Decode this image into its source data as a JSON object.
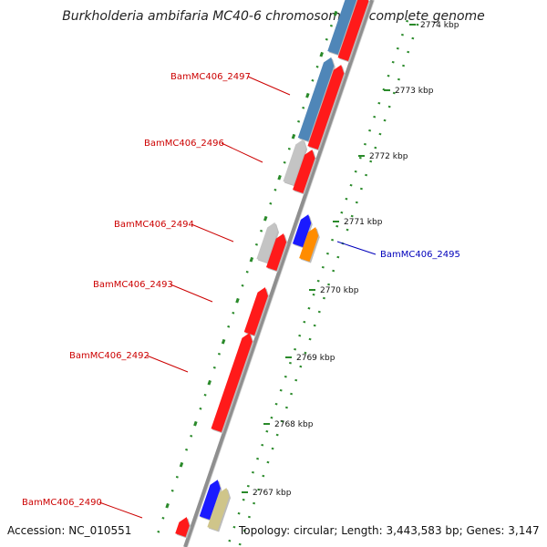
{
  "title": "Burkholderia ambifaria MC40-6 chromosome 1, complete genome",
  "footer": {
    "accession": "Accession: NC_010551",
    "summary": "Topology: circular; Length: 3,443,583 bp; Genes: 3,147"
  },
  "colors": {
    "backbone": "#8f8f8f",
    "label_red": "#cc0000",
    "label_blue": "#0000bb",
    "tick_green": "#2a8a2a",
    "gene_red": "#ff1a1a",
    "gene_blue": "#1a1aff",
    "gene_steel": "#4f86b8",
    "gene_gray": "#c4c4c4",
    "gene_orange": "#ff8c00",
    "gene_khaki": "#cfc58a"
  },
  "ruler": [
    "2767 kbp",
    "2768 kbp",
    "2769 kbp",
    "2770 kbp",
    "2771 kbp",
    "2772 kbp",
    "2773 kbp",
    "2774 kbp"
  ],
  "gene_labels": [
    {
      "id": "BamMC406_2497",
      "color": "red"
    },
    {
      "id": "BamMC406_2496",
      "color": "red"
    },
    {
      "id": "BamMC406_2494",
      "color": "red"
    },
    {
      "id": "BamMC406_2495",
      "color": "blue"
    },
    {
      "id": "BamMC406_2493",
      "color": "red"
    },
    {
      "id": "BamMC406_2492",
      "color": "red"
    },
    {
      "id": "BamMC406_2490",
      "color": "red"
    }
  ]
}
